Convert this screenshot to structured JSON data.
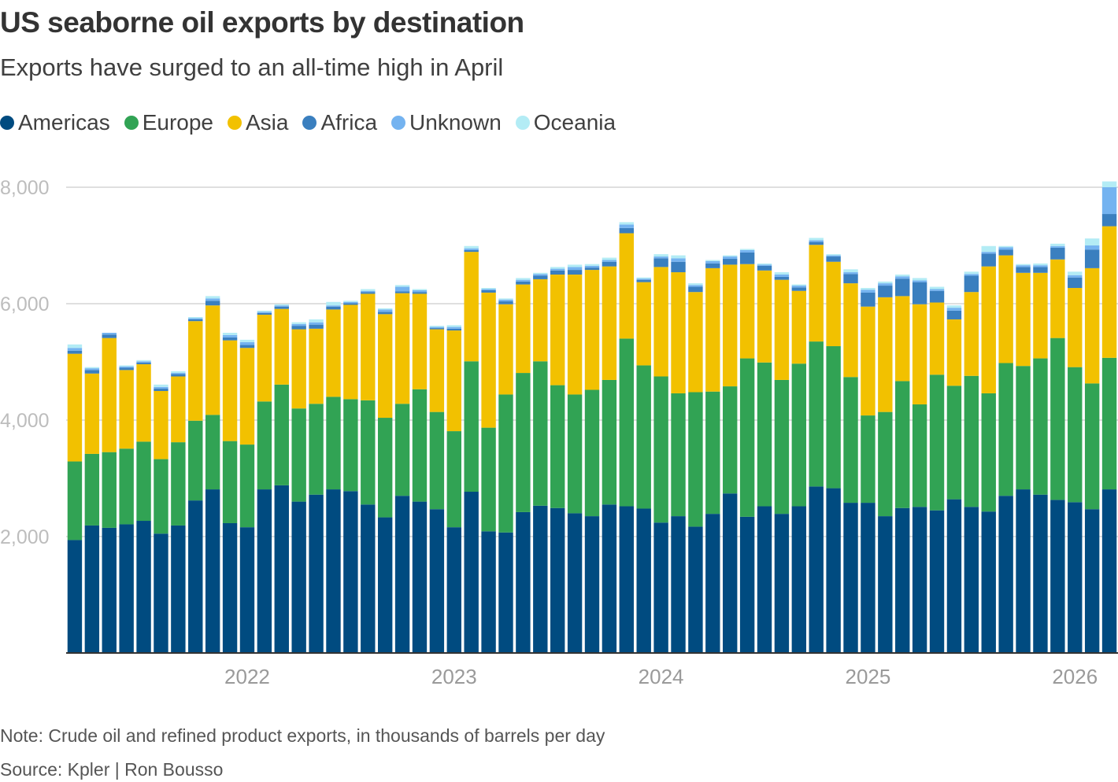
{
  "header": {
    "title": "US seaborne oil exports by destination",
    "subtitle": "Exports have surged to an all-time high in April"
  },
  "footer": {
    "note": "Note: Crude oil and refined product exports, in thousands of barrels per day",
    "source": "Source: Kpler | Ron Bousso"
  },
  "chart_data": {
    "type": "bar",
    "stacked": true,
    "ylim": [
      0,
      8000
    ],
    "y_ticks": [
      2000,
      4000,
      6000,
      8000
    ],
    "y_tick_labels": [
      "2,000",
      "4,000",
      "6,000",
      "8,000"
    ],
    "x_ticks": [
      "2022",
      "2023",
      "2024",
      "2025",
      "2026"
    ],
    "x_tick_bar_index": [
      10,
      22,
      34,
      46,
      58
    ],
    "grid": true,
    "legend_position": "top-left",
    "categories": [
      "Apr 2021",
      "May 2021",
      "Jun 2021",
      "Jul 2021",
      "Aug 2021",
      "Sep 2021",
      "Oct 2021",
      "Nov 2021",
      "Dec 2021",
      "Jan 2022",
      "Feb 2022",
      "Mar 2022",
      "Apr 2022",
      "May 2022",
      "Jun 2022",
      "Jul 2022",
      "Aug 2022",
      "Sep 2022",
      "Oct 2022",
      "Nov 2022",
      "Dec 2022",
      "Jan 2023",
      "Feb 2023",
      "Mar 2023",
      "Apr 2023",
      "May 2023",
      "Jun 2023",
      "Jul 2023",
      "Aug 2023",
      "Sep 2023",
      "Oct 2023",
      "Nov 2023",
      "Dec 2023",
      "Jan 2024",
      "Feb 2024",
      "Mar 2024",
      "Apr 2024",
      "May 2024",
      "Jun 2024",
      "Jul 2024",
      "Aug 2024",
      "Sep 2024",
      "Oct 2024",
      "Nov 2024",
      "Dec 2024",
      "Jan 2025",
      "Feb 2025",
      "Mar 2025",
      "Apr 2025",
      "May 2025",
      "Jun 2025",
      "Jul 2025",
      "Aug 2025",
      "Sep 2025",
      "Oct 2025",
      "Nov 2025",
      "Dec 2025",
      "Jan 2026",
      "Feb 2026",
      "Mar 2026",
      "Apr 2026"
    ],
    "series": [
      {
        "name": "Americas",
        "color": "#004b80",
        "values": [
          1940,
          2190,
          2150,
          2210,
          2270,
          2050,
          2190,
          2620,
          2810,
          2230,
          2160,
          2810,
          2880,
          2600,
          2720,
          2810,
          2780,
          2550,
          2330,
          2700,
          2600,
          2470,
          2160,
          2770,
          2090,
          2070,
          2420,
          2530,
          2490,
          2400,
          2350,
          2550,
          2520,
          2480,
          2240,
          2350,
          2170,
          2390,
          2740,
          2340,
          2520,
          2390,
          2520,
          2860,
          2830,
          2580,
          2580,
          2350,
          2490,
          2510,
          2450,
          2640,
          2510,
          2430,
          2700,
          2810,
          2720,
          2630,
          2590,
          2470,
          2810
        ]
      },
      {
        "name": "Europe",
        "color": "#31a354",
        "values": [
          1350,
          1230,
          1300,
          1300,
          1360,
          1280,
          1430,
          1370,
          1280,
          1410,
          1420,
          1510,
          1730,
          1600,
          1560,
          1590,
          1580,
          1790,
          1710,
          1580,
          1930,
          1670,
          1650,
          2240,
          1780,
          2370,
          2390,
          2480,
          2110,
          2040,
          2170,
          2140,
          2880,
          2460,
          2510,
          2110,
          2310,
          2100,
          1840,
          2720,
          2470,
          2300,
          2450,
          2490,
          2440,
          2160,
          1500,
          1790,
          2180,
          1760,
          2330,
          1950,
          2250,
          2030,
          2280,
          2120,
          2340,
          2780,
          2320,
          2160,
          2260
        ]
      },
      {
        "name": "Asia",
        "color": "#f2c100",
        "values": [
          1850,
          1380,
          1960,
          1350,
          1330,
          1170,
          1130,
          1710,
          1880,
          1730,
          1660,
          1490,
          1300,
          1360,
          1290,
          1500,
          1620,
          1830,
          1780,
          1900,
          1640,
          1420,
          1730,
          1880,
          2320,
          1550,
          1520,
          1410,
          1900,
          2060,
          2060,
          1950,
          1810,
          1430,
          1880,
          2080,
          1720,
          2120,
          2090,
          1620,
          1580,
          1720,
          1250,
          1660,
          1450,
          1610,
          1870,
          1970,
          1460,
          1720,
          1240,
          1140,
          1440,
          2180,
          1850,
          1600,
          1470,
          1350,
          1360,
          1980,
          2260
        ]
      },
      {
        "name": "Africa",
        "color": "#3a7fbf",
        "values": [
          50,
          60,
          60,
          40,
          30,
          40,
          40,
          30,
          80,
          50,
          50,
          30,
          40,
          60,
          70,
          50,
          30,
          30,
          40,
          30,
          30,
          20,
          30,
          30,
          40,
          50,
          50,
          60,
          70,
          80,
          40,
          80,
          90,
          40,
          150,
          180,
          90,
          80,
          100,
          200,
          80,
          50,
          60,
          50,
          90,
          160,
          240,
          200,
          300,
          380,
          200,
          150,
          280,
          220,
          100,
          100,
          100,
          200,
          180,
          320,
          210
        ]
      },
      {
        "name": "Unknown",
        "color": "#74b3f0",
        "values": [
          50,
          30,
          30,
          20,
          20,
          30,
          20,
          20,
          40,
          40,
          50,
          20,
          20,
          30,
          40,
          20,
          20,
          20,
          40,
          80,
          30,
          20,
          30,
          30,
          20,
          30,
          30,
          30,
          30,
          50,
          30,
          30,
          60,
          20,
          30,
          60,
          30,
          40,
          40,
          40,
          20,
          40,
          30,
          30,
          20,
          30,
          50,
          40,
          40,
          30,
          30,
          50,
          30,
          30,
          40,
          30,
          30,
          30,
          40,
          70,
          460
        ]
      },
      {
        "name": "Oceania",
        "color": "#b3ecf5",
        "values": [
          60,
          20,
          0,
          20,
          20,
          40,
          30,
          20,
          40,
          40,
          40,
          20,
          20,
          30,
          50,
          60,
          20,
          30,
          20,
          30,
          20,
          20,
          30,
          40,
          20,
          20,
          30,
          20,
          30,
          40,
          30,
          40,
          40,
          20,
          40,
          50,
          30,
          20,
          20,
          20,
          20,
          40,
          20,
          40,
          20,
          50,
          30,
          30,
          30,
          40,
          40,
          40,
          40,
          100,
          20,
          20,
          30,
          40,
          60,
          120,
          100
        ]
      }
    ]
  }
}
